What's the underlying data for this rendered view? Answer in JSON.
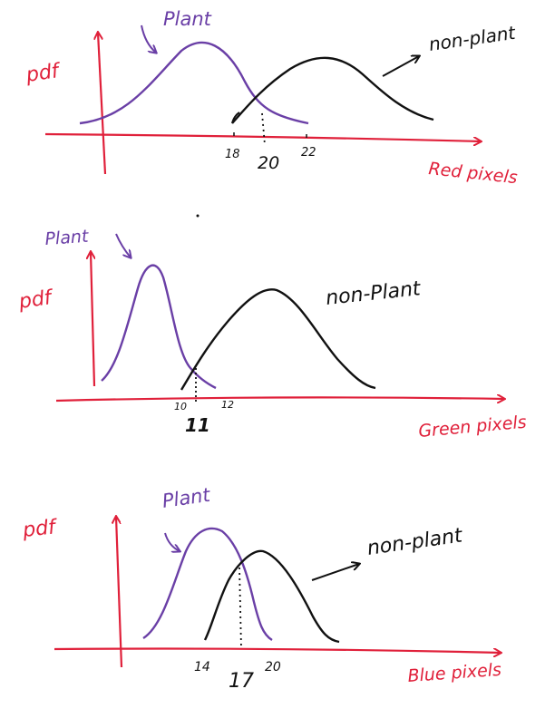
{
  "colors": {
    "axis": "#e0203a",
    "plant_curve": "#6a3fa6",
    "non_plant_curve": "#111111",
    "background": "#ffffff"
  },
  "panels": [
    {
      "id": "red",
      "ylabel": "pdf",
      "xlabel": "Red pixels",
      "plant_label": "Plant",
      "non_plant_label": "non-plant",
      "ticks": [
        "18",
        "20",
        "22"
      ],
      "threshold": "20"
    },
    {
      "id": "green",
      "ylabel": "pdf",
      "xlabel": "Green pixels",
      "plant_label": "Plant",
      "non_plant_label": "non-Plant",
      "ticks": [
        "10",
        "11",
        "12"
      ],
      "threshold": "11"
    },
    {
      "id": "blue",
      "ylabel": "pdf",
      "xlabel": "Blue pixels",
      "plant_label": "Plant",
      "non_plant_label": "non-plant",
      "ticks": [
        "14",
        "17",
        "20"
      ],
      "threshold": "17"
    }
  ]
}
